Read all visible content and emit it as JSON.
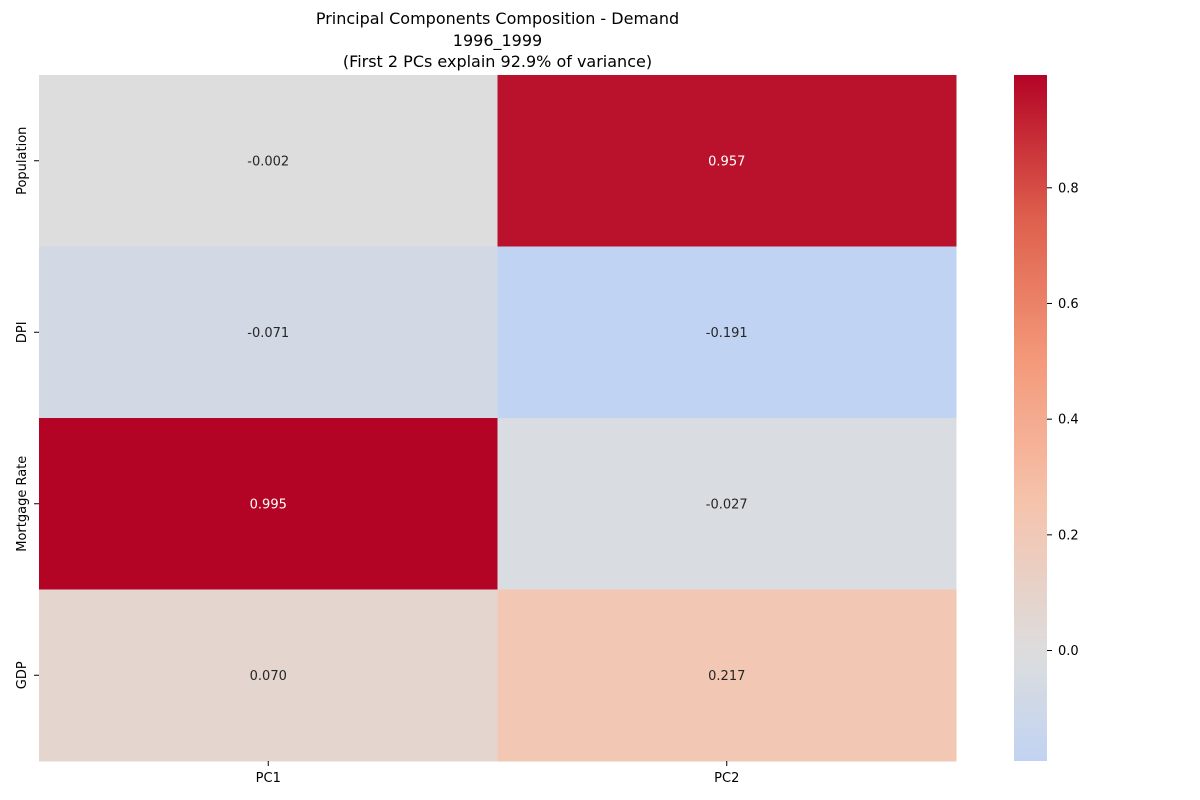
{
  "chart_data": {
    "type": "heatmap",
    "title_lines": [
      "Principal Components Composition - Demand",
      "1996_1999",
      "(First 2 PCs explain 92.9% of variance)"
    ],
    "x_categories": [
      "PC1",
      "PC2"
    ],
    "y_categories": [
      "Population",
      "DPI",
      "Mortgage Rate",
      "GDP"
    ],
    "values": [
      [
        -0.002,
        0.957
      ],
      [
        -0.071,
        -0.191
      ],
      [
        0.995,
        -0.027
      ],
      [
        0.07,
        0.217
      ]
    ],
    "value_labels": [
      [
        "-0.002",
        "0.957"
      ],
      [
        "-0.071",
        "-0.191"
      ],
      [
        "0.995",
        "-0.027"
      ],
      [
        "0.070",
        "0.217"
      ]
    ],
    "colormap": "coolwarm",
    "center": 0,
    "vmin": -0.191,
    "vmax": 0.995,
    "colorbar_ticks": [
      0.0,
      0.2,
      0.4,
      0.6,
      0.8
    ],
    "colorbar_tick_labels": [
      "0.0",
      "0.2",
      "0.4",
      "0.6",
      "0.8"
    ],
    "xlabel": "",
    "ylabel": ""
  }
}
